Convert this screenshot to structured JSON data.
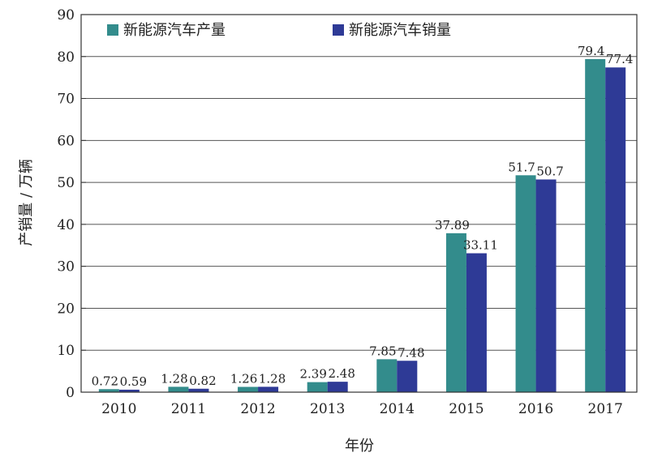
{
  "chart_data": {
    "type": "bar",
    "title": "",
    "xlabel": "年份",
    "ylabel": "产销量 / 万辆",
    "ylim": [
      0,
      90
    ],
    "ytick_step": 10,
    "grid": true,
    "legend_position": "top-left",
    "categories": [
      "2010",
      "2011",
      "2012",
      "2013",
      "2014",
      "2015",
      "2016",
      "2017"
    ],
    "series": [
      {
        "name": "新能源汽车产量",
        "color": "#338c8c",
        "values": [
          0.72,
          1.28,
          1.26,
          2.39,
          7.85,
          37.89,
          51.7,
          79.4
        ],
        "labels": [
          "0.72",
          "1.28",
          "1.26",
          "2.39",
          "7.85",
          "37.89",
          "51.7",
          "79.4"
        ]
      },
      {
        "name": "新能源汽车销量",
        "color": "#2e3a96",
        "values": [
          0.59,
          0.82,
          1.28,
          2.48,
          7.48,
          33.11,
          50.7,
          77.4
        ],
        "labels": [
          "0.59",
          "0.82",
          "1.28",
          "2.48",
          "7.48",
          "33.11",
          "50.7",
          "77.4"
        ]
      }
    ]
  }
}
